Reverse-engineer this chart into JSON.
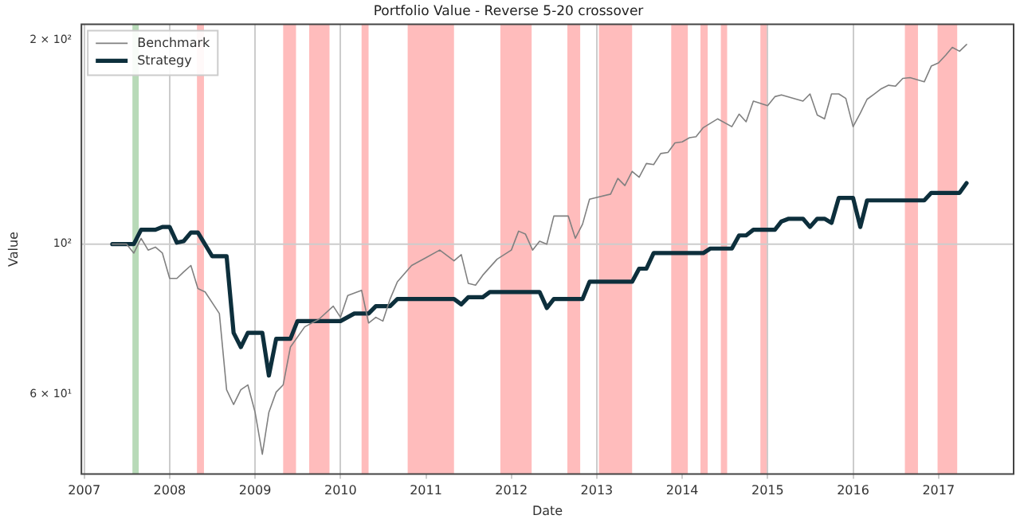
{
  "chart_data": {
    "type": "line",
    "title": "Portfolio Value - Reverse 5-20 crossover",
    "xlabel": "Date",
    "ylabel": "Value",
    "log": "y",
    "xlim": [
      "2006-12-20",
      "2017-11-18"
    ],
    "xticks": [
      "2007",
      "2008",
      "2009",
      "2010",
      "2011",
      "2012",
      "2013",
      "2014",
      "2015",
      "2016",
      "2017"
    ],
    "ylim": [
      45.8,
      211
    ],
    "yticks": [
      {
        "value": 60,
        "label": "6 × 10¹"
      },
      {
        "value": 100,
        "label": "10²"
      },
      {
        "value": 200,
        "label": "2 × 10²"
      }
    ],
    "grid": "x",
    "legend": "top left",
    "ref_lines": [
      {
        "axis": "y",
        "value": 100,
        "color": "#cccccc"
      }
    ],
    "series": [
      {
        "name": "Benchmark",
        "color": "#808080",
        "x": [
          "2007-05",
          "2007-06",
          "2007-07",
          "2007-08",
          "2007-09",
          "2007-10",
          "2007-11",
          "2007-12",
          "2008-01",
          "2008-02",
          "2008-03",
          "2008-04",
          "2008-05",
          "2008-06",
          "2008-08",
          "2008-09",
          "2008-10",
          "2008-11",
          "2008-12",
          "2009-01",
          "2009-02",
          "2009-03",
          "2009-04",
          "2009-05",
          "2009-06",
          "2009-08",
          "2009-10",
          "2009-12",
          "2010-01",
          "2010-02",
          "2010-04",
          "2010-05",
          "2010-06",
          "2010-07",
          "2010-08",
          "2010-09",
          "2010-11",
          "2011-01",
          "2011-03",
          "2011-05",
          "2011-06",
          "2011-07",
          "2011-08",
          "2011-09",
          "2011-11",
          "2012-01",
          "2012-02",
          "2012-03",
          "2012-04",
          "2012-05",
          "2012-06",
          "2012-07",
          "2012-09",
          "2012-10",
          "2012-11",
          "2012-12",
          "2013-03",
          "2013-04",
          "2013-05",
          "2013-06",
          "2013-07",
          "2013-08",
          "2013-09",
          "2013-10",
          "2013-11",
          "2013-12",
          "2014-01",
          "2014-02",
          "2014-03",
          "2014-04",
          "2014-06",
          "2014-08",
          "2014-09",
          "2014-10",
          "2014-11",
          "2015-01",
          "2015-02",
          "2015-03",
          "2015-06",
          "2015-07",
          "2015-08",
          "2015-09",
          "2015-10",
          "2015-11",
          "2015-12",
          "2016-01",
          "2016-02",
          "2016-03",
          "2016-04",
          "2016-05",
          "2016-06",
          "2016-07",
          "2016-08",
          "2016-09",
          "2016-11",
          "2016-12",
          "2017-01",
          "2017-02",
          "2017-03",
          "2017-04",
          "2017-05"
        ],
        "values": [
          100,
          100,
          100,
          97,
          102,
          98,
          99,
          97,
          89,
          89,
          91,
          93,
          86,
          85,
          79,
          61,
          58,
          61,
          62,
          56.5,
          49,
          56.5,
          60.5,
          62,
          70.5,
          75.5,
          77.5,
          81,
          78,
          84,
          85.5,
          76.5,
          78,
          77,
          83,
          88,
          93,
          95.5,
          98,
          94.5,
          96.5,
          87.5,
          87,
          90,
          95,
          98,
          104.5,
          103.5,
          98,
          101,
          100,
          110,
          110,
          102,
          107,
          116.5,
          118.5,
          125,
          122,
          128,
          125.5,
          131.5,
          131,
          136,
          136.5,
          141,
          141.5,
          143.5,
          144,
          148.5,
          153,
          149,
          155.5,
          151.5,
          162.5,
          160,
          165,
          166,
          162.5,
          166.5,
          155,
          153,
          166.5,
          166.5,
          164,
          149,
          156,
          163.5,
          166.5,
          169.5,
          171.5,
          171,
          175.5,
          176,
          173.5,
          183,
          185,
          190,
          195,
          192.5,
          197
        ]
      },
      {
        "name": "Strategy",
        "color": "#0d2f3c",
        "x": [
          "2007-05",
          "2007-08",
          "2007-09",
          "2007-11",
          "2007-12",
          "2008-01",
          "2008-02",
          "2008-03",
          "2008-04",
          "2008-05",
          "2008-07",
          "2008-09",
          "2008-10",
          "2008-11",
          "2008-12",
          "2009-02",
          "2009-03",
          "2009-04",
          "2009-06",
          "2009-07",
          "2010-01",
          "2010-03",
          "2010-05",
          "2010-06",
          "2010-08",
          "2010-09",
          "2011-05",
          "2011-06",
          "2011-07",
          "2011-09",
          "2011-10",
          "2012-05",
          "2012-06",
          "2012-07",
          "2012-11",
          "2012-12",
          "2013-06",
          "2013-07",
          "2013-08",
          "2013-09",
          "2014-04",
          "2014-05",
          "2014-08",
          "2014-09",
          "2014-10",
          "2014-11",
          "2015-02",
          "2015-03",
          "2015-04",
          "2015-06",
          "2015-07",
          "2015-08",
          "2015-09",
          "2015-10",
          "2015-11",
          "2016-01",
          "2016-02",
          "2016-03",
          "2016-11",
          "2016-12",
          "2017-04",
          "2017-05"
        ],
        "values": [
          100,
          100,
          105,
          105,
          106,
          106,
          100.5,
          101,
          104,
          104,
          96,
          96,
          74,
          70.5,
          74,
          74,
          64,
          72.5,
          72.5,
          77,
          77,
          79,
          79,
          81,
          81,
          83,
          83,
          81.5,
          83.5,
          83.5,
          85,
          85,
          80.5,
          83,
          83,
          88,
          88,
          92,
          92,
          97,
          97,
          98.5,
          98.5,
          103,
          103,
          105,
          105,
          108,
          109,
          109,
          106,
          109,
          109,
          107.5,
          117,
          117,
          106,
          116,
          116,
          119,
          119,
          123
        ]
      }
    ],
    "bands": [
      {
        "axis": "x",
        "from": "2007-07-26",
        "to": "2007-08-22",
        "color": "#b8dab8"
      },
      {
        "axis": "x",
        "from": "2008-04-27",
        "to": "2008-05-27",
        "color": "#ffbcbc"
      },
      {
        "axis": "x",
        "from": "2009-05-01",
        "to": "2009-06-25",
        "color": "#ffbcbc"
      },
      {
        "axis": "x",
        "from": "2009-08-20",
        "to": "2009-11-15",
        "color": "#ffbcbc"
      },
      {
        "axis": "x",
        "from": "2010-04-01",
        "to": "2010-05-01",
        "color": "#ffbcbc"
      },
      {
        "axis": "x",
        "from": "2010-10-15",
        "to": "2011-05-01",
        "color": "#ffbcbc"
      },
      {
        "axis": "x",
        "from": "2011-11-15",
        "to": "2012-03-28",
        "color": "#ffbcbc"
      },
      {
        "axis": "x",
        "from": "2012-08-28",
        "to": "2012-10-22",
        "color": "#ffbcbc"
      },
      {
        "axis": "x",
        "from": "2013-01-10",
        "to": "2013-06-01",
        "color": "#ffbcbc"
      },
      {
        "axis": "x",
        "from": "2013-11-15",
        "to": "2014-01-25",
        "color": "#ffbcbc"
      },
      {
        "axis": "x",
        "from": "2014-03-20",
        "to": "2014-04-20",
        "color": "#ffbcbc"
      },
      {
        "axis": "x",
        "from": "2014-06-15",
        "to": "2014-07-12",
        "color": "#ffbcbc"
      },
      {
        "axis": "x",
        "from": "2014-12-01",
        "to": "2014-12-28",
        "color": "#ffbcbc"
      },
      {
        "axis": "x",
        "from": "2016-08-10",
        "to": "2016-10-05",
        "color": "#ffbcbc"
      },
      {
        "axis": "x",
        "from": "2016-12-28",
        "to": "2017-03-22",
        "color": "#ffbcbc"
      }
    ]
  }
}
